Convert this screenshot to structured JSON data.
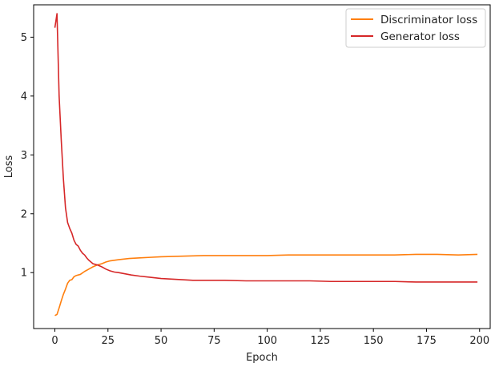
{
  "chart_data": {
    "type": "line",
    "xlabel": "Epoch",
    "ylabel": "Loss",
    "xlim": [
      -10,
      205
    ],
    "ylim": [
      0.05,
      5.55
    ],
    "xticks": [
      0,
      25,
      50,
      75,
      100,
      125,
      150,
      175,
      200
    ],
    "yticks": [
      1,
      2,
      3,
      4,
      5
    ],
    "grid": false,
    "legend_position": "top-right",
    "series": [
      {
        "name": "Discriminator loss",
        "color": "#ff7f0e",
        "points": [
          [
            0,
            0.27
          ],
          [
            1,
            0.29
          ],
          [
            2,
            0.4
          ],
          [
            3,
            0.52
          ],
          [
            4,
            0.63
          ],
          [
            5,
            0.72
          ],
          [
            6,
            0.82
          ],
          [
            7,
            0.87
          ],
          [
            8,
            0.88
          ],
          [
            9,
            0.93
          ],
          [
            10,
            0.95
          ],
          [
            12,
            0.97
          ],
          [
            14,
            1.02
          ],
          [
            16,
            1.06
          ],
          [
            18,
            1.1
          ],
          [
            20,
            1.13
          ],
          [
            22,
            1.15
          ],
          [
            24,
            1.18
          ],
          [
            26,
            1.2
          ],
          [
            28,
            1.21
          ],
          [
            30,
            1.22
          ],
          [
            35,
            1.24
          ],
          [
            40,
            1.25
          ],
          [
            45,
            1.26
          ],
          [
            50,
            1.27
          ],
          [
            60,
            1.28
          ],
          [
            70,
            1.29
          ],
          [
            80,
            1.29
          ],
          [
            90,
            1.29
          ],
          [
            100,
            1.29
          ],
          [
            110,
            1.3
          ],
          [
            120,
            1.3
          ],
          [
            130,
            1.3
          ],
          [
            140,
            1.3
          ],
          [
            150,
            1.3
          ],
          [
            160,
            1.3
          ],
          [
            170,
            1.31
          ],
          [
            180,
            1.31
          ],
          [
            190,
            1.3
          ],
          [
            199,
            1.31
          ]
        ]
      },
      {
        "name": "Generator loss",
        "color": "#d62728",
        "points": [
          [
            0,
            5.16
          ],
          [
            1,
            5.4
          ],
          [
            2,
            4.0
          ],
          [
            3,
            3.25
          ],
          [
            4,
            2.6
          ],
          [
            5,
            2.1
          ],
          [
            6,
            1.85
          ],
          [
            7,
            1.75
          ],
          [
            8,
            1.67
          ],
          [
            9,
            1.55
          ],
          [
            10,
            1.48
          ],
          [
            11,
            1.45
          ],
          [
            12,
            1.38
          ],
          [
            13,
            1.33
          ],
          [
            14,
            1.3
          ],
          [
            15,
            1.25
          ],
          [
            16,
            1.21
          ],
          [
            17,
            1.18
          ],
          [
            18,
            1.15
          ],
          [
            19,
            1.14
          ],
          [
            20,
            1.13
          ],
          [
            22,
            1.1
          ],
          [
            24,
            1.06
          ],
          [
            26,
            1.03
          ],
          [
            28,
            1.01
          ],
          [
            30,
            1.0
          ],
          [
            33,
            0.98
          ],
          [
            36,
            0.96
          ],
          [
            40,
            0.94
          ],
          [
            45,
            0.92
          ],
          [
            50,
            0.9
          ],
          [
            55,
            0.89
          ],
          [
            60,
            0.88
          ],
          [
            65,
            0.87
          ],
          [
            70,
            0.87
          ],
          [
            75,
            0.87
          ],
          [
            80,
            0.87
          ],
          [
            90,
            0.86
          ],
          [
            100,
            0.86
          ],
          [
            110,
            0.86
          ],
          [
            120,
            0.86
          ],
          [
            130,
            0.85
          ],
          [
            140,
            0.85
          ],
          [
            150,
            0.85
          ],
          [
            160,
            0.85
          ],
          [
            170,
            0.84
          ],
          [
            180,
            0.84
          ],
          [
            190,
            0.84
          ],
          [
            199,
            0.84
          ]
        ]
      }
    ]
  }
}
